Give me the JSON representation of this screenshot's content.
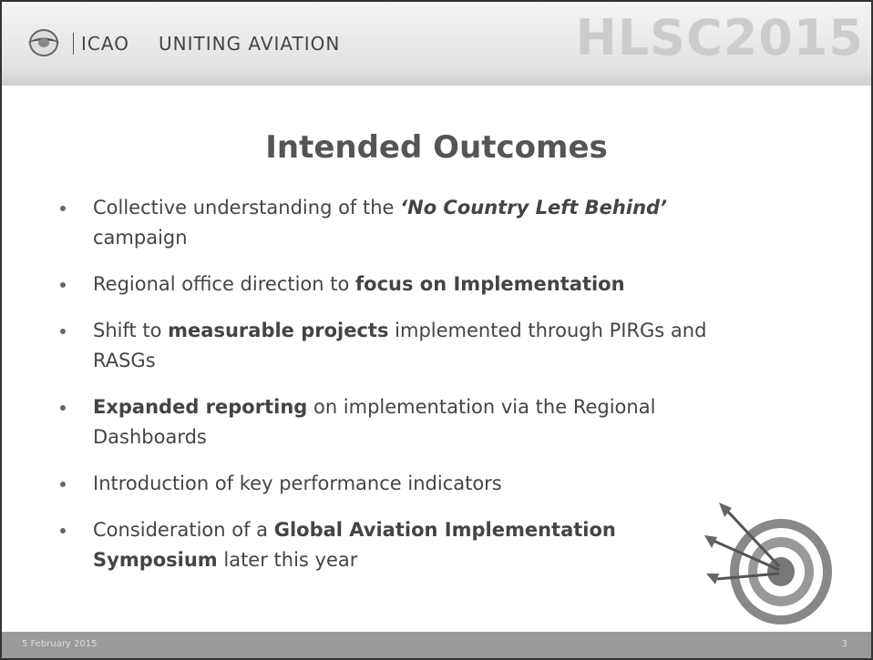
{
  "header": {
    "org": "ICAO",
    "tagline": "UNITING AVIATION",
    "event": "HLSC2015"
  },
  "title": "Intended Outcomes",
  "bullets": [
    [
      {
        "text": "Collective understanding of the "
      },
      {
        "text": "‘No Country Left Behind’",
        "bold": true,
        "italic": true
      },
      {
        "text": " campaign"
      }
    ],
    [
      {
        "text": "Regional office direction to "
      },
      {
        "text": "focus on Implementation",
        "bold": true
      }
    ],
    [
      {
        "text": "Shift to "
      },
      {
        "text": "measurable projects",
        "bold": true
      },
      {
        "text": " implemented through PIRGs and RASGs"
      }
    ],
    [
      {
        "text": "Expanded reporting",
        "bold": true
      },
      {
        "text": " on implementation via the Regional Dashboards"
      }
    ],
    [
      {
        "text": "Introduction of key performance indicators"
      }
    ],
    [
      {
        "text": "Consideration of a "
      },
      {
        "text": "Global Aviation Implementation Symposium",
        "bold": true
      },
      {
        "text": " later this year"
      }
    ]
  ],
  "footer": {
    "date": "5 February 2015",
    "page": "3"
  }
}
